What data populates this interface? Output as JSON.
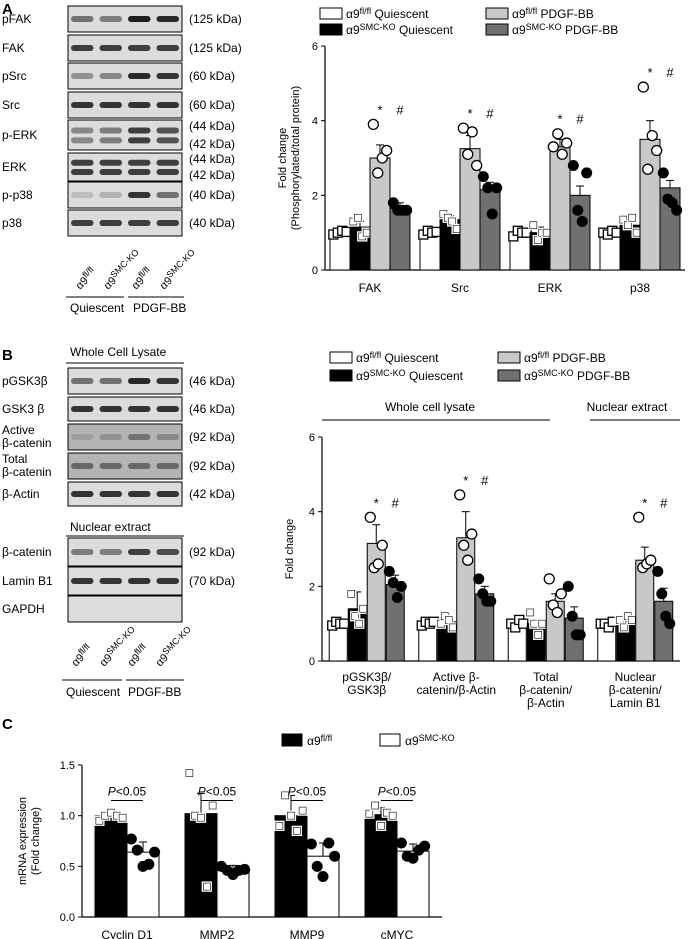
{
  "panels": {
    "a": {
      "letter": "A",
      "blot_rows": [
        {
          "label": "pFAK",
          "kda": "(125 kDa)"
        },
        {
          "label": "FAK",
          "kda": "(125 kDa)"
        },
        {
          "label": "pSrc",
          "kda": "(60 kDa)"
        },
        {
          "label": "Src",
          "kda": "(60 kDa)"
        },
        {
          "label": "p-ERK",
          "kda": "(44 kDa)",
          "kda2": "(42 kDa)"
        },
        {
          "label": "ERK",
          "kda": "(44 kDa)",
          "kda2": "(42 kDa)"
        },
        {
          "label": "p-p38",
          "kda": "(40 kDa)"
        },
        {
          "label": "p38",
          "kda": "(40 kDa)"
        }
      ],
      "lane_labels": [
        {
          "base": "α9",
          "sup": "fl/fl"
        },
        {
          "base": "α9",
          "sup": "SMC-KO"
        },
        {
          "base": "α9",
          "sup": "fl/fl"
        },
        {
          "base": "α9",
          "sup": "SMC-KO"
        }
      ],
      "group_labels": [
        "Quiescent",
        "PDGF-BB"
      ],
      "legend": [
        {
          "base": "α9",
          "sup": "fl/fl",
          "rest": " Quiescent",
          "color": "#ffffff"
        },
        {
          "base": "α9",
          "sup": "SMC-KO",
          "rest": " Quiescent",
          "color": "#000000"
        },
        {
          "base": "α9",
          "sup": "fl/fl",
          "rest": " PDGF-BB",
          "color": "#c8c8c8"
        },
        {
          "base": "α9",
          "sup": "SMC-KO",
          "rest": " PDGF-BB",
          "color": "#707070"
        }
      ]
    },
    "b": {
      "letter": "B",
      "wcl_title": "Whole Cell Lysate",
      "blot_rows": [
        {
          "label": "pGSK3β",
          "kda": "(46 kDa)"
        },
        {
          "label": "GSK3 β",
          "kda": "(46 kDa)"
        },
        {
          "label": "Active",
          "label2": "β-catenin",
          "kda": "(92 kDa)"
        },
        {
          "label": "Total",
          "label2": "β-catenin",
          "kda": "(92 kDa)"
        },
        {
          "label": "β-Actin",
          "kda": "(42 kDa)"
        }
      ],
      "nuc_title": "Nuclear extract",
      "nuc_rows": [
        {
          "label": "β-catenin",
          "kda": "(92 kDa)"
        },
        {
          "label": "Lamin B1",
          "kda": "(70 kDa)"
        },
        {
          "label": "GAPDH",
          "kda": ""
        }
      ],
      "group_labels": [
        "Quiescent",
        "PDGF-BB"
      ],
      "bracket_labels": [
        "Whole cell lysate",
        "Nuclear extract"
      ]
    },
    "c": {
      "letter": "C",
      "legend": [
        {
          "base": "α9",
          "sup": "fl/fl",
          "color": "#000000"
        },
        {
          "base": "α9",
          "sup": "SMC-KO",
          "color": "#ffffff"
        }
      ],
      "p_prefix": "P",
      "p_suffix": "<0.05"
    }
  },
  "chart_data": [
    {
      "id": "A",
      "type": "bar",
      "ylabel": "Fold change",
      "ylabel2": "(Phosphorylated/total protein)",
      "ylim": [
        0,
        6
      ],
      "yticks": [
        0,
        2,
        4,
        6
      ],
      "categories": [
        "FAK",
        "Src",
        "ERK",
        "p38"
      ],
      "series": [
        {
          "name": "α9fl/fl Quiescent",
          "values": [
            1.0,
            1.0,
            1.0,
            1.0
          ],
          "errors": [
            0.05,
            0.05,
            0.05,
            0.05
          ],
          "color": "#ffffff",
          "points": [
            [
              0.95,
              1.0,
              1.05,
              1.02
            ],
            [
              0.95,
              1.05,
              1.0,
              1.02
            ],
            [
              0.9,
              1.05,
              1.0,
              1.0
            ],
            [
              1.0,
              0.95,
              1.05,
              1.0
            ]
          ],
          "marker": "square-open"
        },
        {
          "name": "α9SMC-KO Quiescent",
          "values": [
            1.15,
            1.35,
            1.0,
            1.2
          ],
          "errors": [
            0.15,
            0.1,
            0.15,
            0.12
          ],
          "color": "#000000",
          "points": [
            [
              1.3,
              1.4,
              0.9,
              1.0
            ],
            [
              1.5,
              1.4,
              1.3,
              1.1
            ],
            [
              1.2,
              0.8,
              1.0,
              1.0
            ],
            [
              1.35,
              1.2,
              1.4,
              1.0
            ]
          ],
          "marker": "square-open"
        },
        {
          "name": "α9fl/fl PDGF-BB",
          "values": [
            3.0,
            3.25,
            3.3,
            3.5
          ],
          "errors": [
            0.35,
            0.35,
            0.2,
            0.5
          ],
          "color": "#c8c8c8",
          "points": [
            [
              3.9,
              2.6,
              3.0,
              3.2
            ],
            [
              3.8,
              3.1,
              3.7,
              2.8
            ],
            [
              3.3,
              3.65,
              3.1,
              3.4
            ],
            [
              4.9,
              2.7,
              3.6,
              3.2
            ]
          ],
          "marker": "circle-open"
        },
        {
          "name": "α9SMC-KO PDGF-BB",
          "values": [
            1.65,
            2.15,
            2.0,
            2.2
          ],
          "errors": [
            0.15,
            0.2,
            0.25,
            0.2
          ],
          "color": "#707070",
          "points": [
            [
              1.8,
              1.6,
              1.6,
              1.6
            ],
            [
              2.5,
              2.2,
              1.5,
              2.2
            ],
            [
              2.8,
              1.6,
              1.3,
              2.6
            ],
            [
              2.6,
              1.9,
              1.8,
              1.6
            ]
          ],
          "marker": "circle-filled"
        }
      ],
      "annotations": [
        "*",
        "#"
      ]
    },
    {
      "id": "B",
      "type": "bar",
      "ylabel": "Fold change",
      "ylim": [
        0,
        6
      ],
      "yticks": [
        0,
        2,
        4,
        6
      ],
      "categories": [
        "pGSK3β/\nGSK3β",
        "Active β-\ncatenin/β-Actin",
        "Total\nβ-catenin/\nβ-Actin",
        "Nuclear\nβ-catenin/\nLamin B1"
      ],
      "series": [
        {
          "name": "α9fl/fl Quiescent",
          "values": [
            1.0,
            1.0,
            1.0,
            1.0
          ],
          "errors": [
            0.05,
            0.05,
            0.05,
            0.05
          ],
          "color": "#ffffff",
          "points": [
            [
              0.95,
              1.05,
              1.0,
              1.0
            ],
            [
              0.95,
              1.05,
              1.0,
              1.05
            ],
            [
              1.0,
              0.9,
              1.1,
              1.0
            ],
            [
              1.0,
              1.0,
              0.9,
              1.05
            ]
          ],
          "marker": "square-open"
        },
        {
          "name": "α9SMC-KO Quiescent",
          "values": [
            1.4,
            1.05,
            1.0,
            1.05
          ],
          "errors": [
            0.45,
            0.15,
            0.12,
            0.15
          ],
          "color": "#000000",
          "points": [
            [
              1.8,
              1.2,
              1.0,
              1.4
            ],
            [
              1.0,
              1.2,
              1.1,
              0.9
            ],
            [
              1.3,
              1.0,
              0.7,
              1.0
            ],
            [
              1.1,
              0.9,
              1.2,
              1.1
            ]
          ],
          "marker": "square-open"
        },
        {
          "name": "α9fl/fl PDGF-BB",
          "values": [
            3.15,
            3.3,
            1.6,
            2.7
          ],
          "errors": [
            0.5,
            0.7,
            0.2,
            0.35
          ],
          "color": "#c8c8c8",
          "points": [
            [
              3.85,
              2.5,
              2.6,
              3.1
            ],
            [
              4.45,
              3.1,
              2.7,
              3.4
            ],
            [
              2.2,
              1.5,
              1.3,
              1.8
            ],
            [
              3.85,
              2.5,
              2.6,
              2.7
            ]
          ],
          "marker": "circle-open"
        },
        {
          "name": "α9SMC-KO PDGF-BB",
          "values": [
            2.05,
            1.8,
            1.15,
            1.6
          ],
          "errors": [
            0.25,
            0.2,
            0.3,
            0.35
          ],
          "color": "#707070",
          "points": [
            [
              2.4,
              2.1,
              1.7,
              2.0
            ],
            [
              2.2,
              1.8,
              1.6,
              1.6
            ],
            [
              2.0,
              1.2,
              0.7,
              0.7
            ],
            [
              2.4,
              1.8,
              1.2,
              1.0
            ]
          ],
          "marker": "circle-filled"
        }
      ],
      "annotations": [
        "*",
        "#"
      ]
    },
    {
      "id": "C",
      "type": "bar",
      "ylabel": "mRNA expression",
      "ylabel2": "(Fold change)",
      "ylim": [
        0,
        1.5
      ],
      "yticks": [
        0.0,
        0.5,
        1.0,
        1.5
      ],
      "categories": [
        "Cyclin D1",
        "MMP2",
        "MMP9",
        "cMYC"
      ],
      "series": [
        {
          "name": "α9fl/fl",
          "values": [
            1.0,
            1.02,
            1.0,
            1.01
          ],
          "errors": [
            0.05,
            0.2,
            0.2,
            0.07
          ],
          "color": "#000000",
          "points": [
            [
              0.95,
              1.0,
              1.03,
              1.0,
              0.98
            ],
            [
              1.42,
              1.0,
              0.98,
              0.3,
              1.1
            ],
            [
              0.9,
              1.2,
              1.0,
              0.85,
              1.05
            ],
            [
              1.02,
              1.1,
              0.9,
              1.03,
              1.0
            ]
          ],
          "marker": "square-open"
        },
        {
          "name": "α9SMC-KO",
          "values": [
            0.64,
            0.46,
            0.6,
            0.65
          ],
          "errors": [
            0.1,
            0.05,
            0.13,
            0.07
          ],
          "color": "#ffffff",
          "points": [
            [
              0.77,
              0.66,
              0.5,
              0.52,
              0.64
            ],
            [
              0.5,
              0.46,
              0.42,
              0.46,
              0.47
            ],
            [
              0.72,
              0.5,
              0.4,
              0.73,
              0.6
            ],
            [
              0.73,
              0.6,
              0.58,
              0.66,
              0.7
            ]
          ],
          "marker": "circle-filled"
        }
      ],
      "annotations": [
        "P<0.05"
      ]
    }
  ]
}
